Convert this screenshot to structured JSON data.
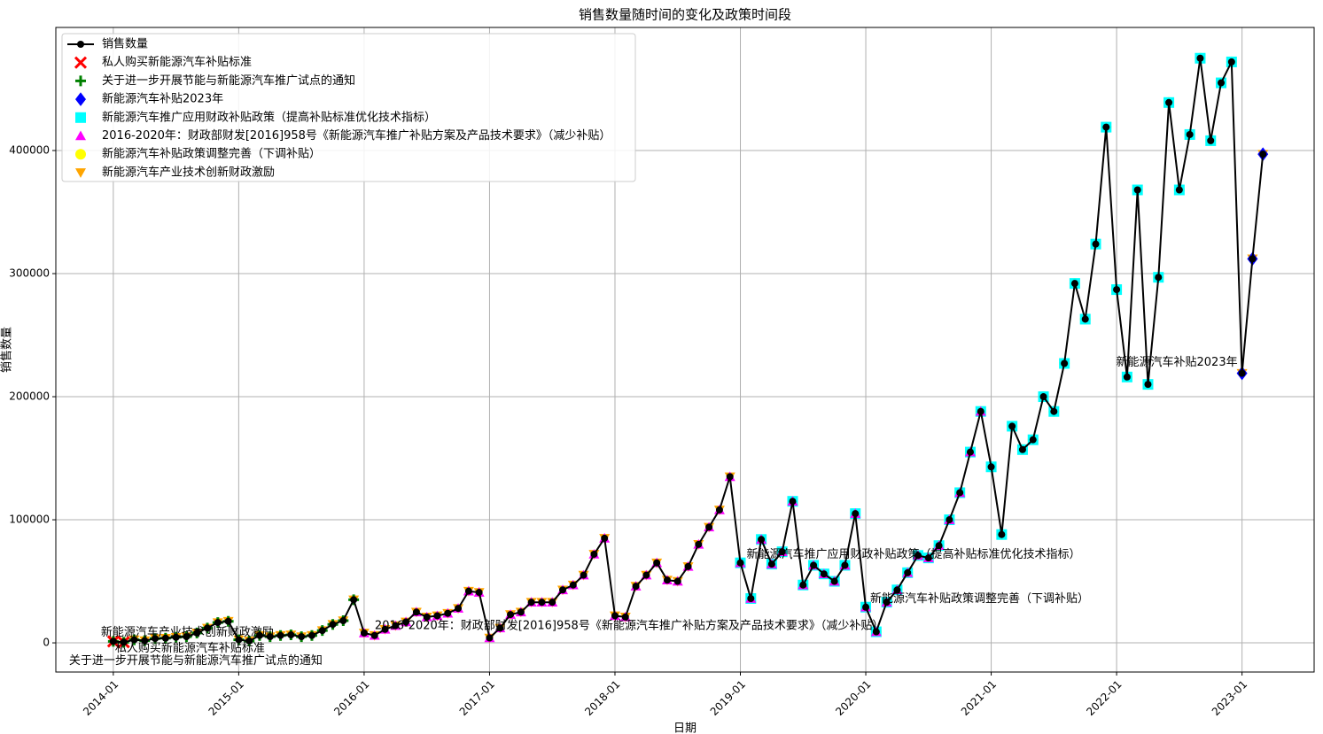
{
  "chart_data": {
    "type": "line",
    "title": "销售数量随时间的变化及政策时间段",
    "x_label": "日期",
    "y_label": "销售数量",
    "x": [
      "2014-01",
      "2014-02",
      "2014-03",
      "2014-04",
      "2014-05",
      "2014-06",
      "2014-07",
      "2014-08",
      "2014-09",
      "2014-10",
      "2014-11",
      "2014-12",
      "2015-01",
      "2015-02",
      "2015-03",
      "2015-04",
      "2015-05",
      "2015-06",
      "2015-07",
      "2015-08",
      "2015-09",
      "2015-10",
      "2015-11",
      "2015-12",
      "2016-01",
      "2016-02",
      "2016-03",
      "2016-04",
      "2016-05",
      "2016-06",
      "2016-07",
      "2016-08",
      "2016-09",
      "2016-10",
      "2016-11",
      "2016-12",
      "2017-01",
      "2017-02",
      "2017-03",
      "2017-04",
      "2017-05",
      "2017-06",
      "2017-07",
      "2017-08",
      "2017-09",
      "2017-10",
      "2017-11",
      "2017-12",
      "2018-01",
      "2018-02",
      "2018-03",
      "2018-04",
      "2018-05",
      "2018-06",
      "2018-07",
      "2018-08",
      "2018-09",
      "2018-10",
      "2018-11",
      "2018-12",
      "2019-01",
      "2019-02",
      "2019-03",
      "2019-04",
      "2019-05",
      "2019-06",
      "2019-07",
      "2019-08",
      "2019-09",
      "2019-10",
      "2019-11",
      "2019-12",
      "2020-01",
      "2020-02",
      "2020-03",
      "2020-04",
      "2020-05",
      "2020-06",
      "2020-07",
      "2020-08",
      "2020-09",
      "2020-10",
      "2020-11",
      "2020-12",
      "2021-01",
      "2021-02",
      "2021-03",
      "2021-04",
      "2021-05",
      "2021-06",
      "2021-07",
      "2021-08",
      "2021-09",
      "2021-10",
      "2021-11",
      "2021-12",
      "2022-01",
      "2022-02",
      "2022-03",
      "2022-04",
      "2022-05",
      "2022-06",
      "2022-07",
      "2022-08",
      "2022-09",
      "2022-10",
      "2022-11",
      "2022-12",
      "2023-01",
      "2023-02",
      "2023-03"
    ],
    "series": [
      {
        "name": "销售数量",
        "color": "#000000",
        "marker": "line",
        "values": [
          1200,
          500,
          2500,
          1800,
          3500,
          3800,
          4500,
          5000,
          8000,
          12000,
          16500,
          17500,
          2500,
          1500,
          6000,
          5000,
          6000,
          6500,
          5000,
          6000,
          10000,
          15000,
          18000,
          35000,
          8000,
          6000,
          11000,
          14000,
          17000,
          25000,
          21000,
          22000,
          24000,
          28000,
          42000,
          41000,
          4000,
          12000,
          23000,
          25000,
          33000,
          33000,
          33000,
          43000,
          47000,
          55000,
          72000,
          85000,
          22000,
          21000,
          46000,
          55000,
          65000,
          51000,
          50000,
          62000,
          80000,
          94000,
          108000,
          135000,
          65000,
          36000,
          84000,
          64000,
          74000,
          115000,
          47000,
          63000,
          56000,
          50000,
          63000,
          105000,
          29000,
          9000,
          33000,
          43000,
          57000,
          71000,
          69000,
          79000,
          100000,
          122000,
          155000,
          188000,
          143000,
          88000,
          176000,
          157000,
          165000,
          200000,
          188000,
          227000,
          292000,
          263000,
          324000,
          419000,
          287000,
          216000,
          368000,
          210000,
          297000,
          439000,
          368000,
          413000,
          475000,
          408000,
          455000,
          472000,
          219000,
          312000,
          397000
        ]
      },
      {
        "name": "私人购买新能源汽车补贴标准",
        "color": "#ff0000",
        "marker": "x",
        "x": [
          "2014-01",
          "2014-02"
        ],
        "values": [
          1200,
          500
        ]
      },
      {
        "name": "关于进一步开展节能与新能源汽车推广试点的通知",
        "color": "#008000",
        "marker": "plus",
        "x": [
          "2014-01",
          "2014-02",
          "2014-03",
          "2014-04",
          "2014-05",
          "2014-06",
          "2014-07",
          "2014-08",
          "2014-09",
          "2014-10",
          "2014-11",
          "2014-12",
          "2015-01",
          "2015-02",
          "2015-03",
          "2015-04",
          "2015-05",
          "2015-06",
          "2015-07",
          "2015-08",
          "2015-09",
          "2015-10",
          "2015-11",
          "2015-12"
        ],
        "values": [
          1200,
          500,
          2500,
          1800,
          3500,
          3800,
          4500,
          5000,
          8000,
          12000,
          16500,
          17500,
          2500,
          1500,
          6000,
          5000,
          6000,
          6500,
          5000,
          6000,
          10000,
          15000,
          18000,
          35000
        ]
      },
      {
        "name": "新能源汽车补贴2023年",
        "color": "#0000ff",
        "marker": "diamond",
        "x": [
          "2023-01",
          "2023-02",
          "2023-03"
        ],
        "values": [
          219000,
          312000,
          397000
        ]
      },
      {
        "name": "新能源汽车推广应用财政补贴政策（提高补贴标准优化技术指标）",
        "color": "#00ffff",
        "marker": "square",
        "x": [
          "2019-01",
          "2019-02",
          "2019-03",
          "2019-04",
          "2019-05",
          "2019-06",
          "2019-07",
          "2019-08",
          "2019-09",
          "2019-10",
          "2019-11",
          "2019-12",
          "2020-01",
          "2020-02",
          "2020-03",
          "2020-04",
          "2020-05",
          "2020-06",
          "2020-07",
          "2020-08",
          "2020-09",
          "2020-10",
          "2020-11",
          "2020-12",
          "2021-01",
          "2021-02",
          "2021-03",
          "2021-04",
          "2021-05",
          "2021-06",
          "2021-07",
          "2021-08",
          "2021-09",
          "2021-10",
          "2021-11",
          "2021-12",
          "2022-01",
          "2022-02",
          "2022-03",
          "2022-04",
          "2022-05",
          "2022-06",
          "2022-07",
          "2022-08",
          "2022-09",
          "2022-10",
          "2022-11",
          "2022-12"
        ],
        "values": [
          65000,
          36000,
          84000,
          64000,
          74000,
          115000,
          47000,
          63000,
          56000,
          50000,
          63000,
          105000,
          29000,
          9000,
          33000,
          43000,
          57000,
          71000,
          69000,
          79000,
          100000,
          122000,
          155000,
          188000,
          143000,
          88000,
          176000,
          157000,
          165000,
          200000,
          188000,
          227000,
          292000,
          263000,
          324000,
          419000,
          287000,
          216000,
          368000,
          210000,
          297000,
          439000,
          368000,
          413000,
          475000,
          408000,
          455000,
          472000
        ]
      },
      {
        "name": "2016-2020年：财政部财发[2016]958号《新能源汽车推广补贴方案及产品技术要求》（减少补贴）",
        "color": "#ff00ff",
        "marker": "triangle-up",
        "x": [
          "2016-01",
          "2016-02",
          "2016-03",
          "2016-04",
          "2016-05",
          "2016-06",
          "2016-07",
          "2016-08",
          "2016-09",
          "2016-10",
          "2016-11",
          "2016-12",
          "2017-01",
          "2017-02",
          "2017-03",
          "2017-04",
          "2017-05",
          "2017-06",
          "2017-07",
          "2017-08",
          "2017-09",
          "2017-10",
          "2017-11",
          "2017-12",
          "2018-01",
          "2018-02",
          "2018-03",
          "2018-04",
          "2018-05",
          "2018-06",
          "2018-07",
          "2018-08",
          "2018-09",
          "2018-10",
          "2018-11",
          "2018-12",
          "2019-01",
          "2019-02",
          "2019-03",
          "2019-04",
          "2019-05",
          "2019-06",
          "2019-07",
          "2019-08",
          "2019-09",
          "2019-10",
          "2019-11",
          "2019-12",
          "2020-01",
          "2020-02",
          "2020-03",
          "2020-04",
          "2020-05",
          "2020-06",
          "2020-07",
          "2020-08",
          "2020-09",
          "2020-10",
          "2020-11",
          "2020-12"
        ],
        "values": [
          8000,
          6000,
          11000,
          14000,
          17000,
          25000,
          21000,
          22000,
          24000,
          28000,
          42000,
          41000,
          4000,
          12000,
          23000,
          25000,
          33000,
          33000,
          33000,
          43000,
          47000,
          55000,
          72000,
          85000,
          22000,
          21000,
          46000,
          55000,
          65000,
          51000,
          50000,
          62000,
          80000,
          94000,
          108000,
          135000,
          65000,
          36000,
          84000,
          64000,
          74000,
          115000,
          47000,
          63000,
          56000,
          50000,
          63000,
          105000,
          29000,
          9000,
          33000,
          43000,
          57000,
          71000,
          69000,
          79000,
          100000,
          122000,
          155000,
          188000
        ]
      },
      {
        "name": "新能源汽车补贴政策调整完善（下调补贴）",
        "color": "#ffff00",
        "marker": "circle",
        "x": [
          "2020-01",
          "2020-02",
          "2020-03",
          "2020-04",
          "2020-05",
          "2020-06",
          "2020-07",
          "2020-08",
          "2020-09",
          "2020-10",
          "2020-11",
          "2020-12",
          "2021-01",
          "2021-02",
          "2021-03",
          "2021-04",
          "2021-05",
          "2021-06",
          "2021-07",
          "2021-08",
          "2021-09",
          "2021-10",
          "2021-11",
          "2021-12",
          "2022-01",
          "2022-02",
          "2022-03",
          "2022-04",
          "2022-05",
          "2022-06",
          "2022-07",
          "2022-08",
          "2022-09",
          "2022-10",
          "2022-11",
          "2022-12"
        ],
        "values": [
          29000,
          9000,
          33000,
          43000,
          57000,
          71000,
          69000,
          79000,
          100000,
          122000,
          155000,
          188000,
          143000,
          88000,
          176000,
          157000,
          165000,
          200000,
          188000,
          227000,
          292000,
          263000,
          324000,
          419000,
          287000,
          216000,
          368000,
          210000,
          297000,
          439000,
          368000,
          413000,
          475000,
          408000,
          455000,
          472000
        ]
      },
      {
        "name": "新能源汽车产业技术创新财政激励",
        "color": "#ffa500",
        "marker": "triangle-down",
        "x": [
          "2014-01",
          "2014-02",
          "2014-03",
          "2014-04",
          "2014-05",
          "2014-06",
          "2014-07",
          "2014-08",
          "2014-09",
          "2014-10",
          "2014-11",
          "2014-12",
          "2015-01",
          "2015-02",
          "2015-03",
          "2015-04",
          "2015-05",
          "2015-06",
          "2015-07",
          "2015-08",
          "2015-09",
          "2015-10",
          "2015-11",
          "2015-12",
          "2016-01",
          "2016-02",
          "2016-03",
          "2016-04",
          "2016-05",
          "2016-06",
          "2016-07",
          "2016-08",
          "2016-09",
          "2016-10",
          "2016-11",
          "2016-12",
          "2017-01",
          "2017-02",
          "2017-03",
          "2017-04",
          "2017-05",
          "2017-06",
          "2017-07",
          "2017-08",
          "2017-09",
          "2017-10",
          "2017-11",
          "2017-12",
          "2018-01",
          "2018-02",
          "2018-03",
          "2018-04",
          "2018-05",
          "2018-06",
          "2018-07",
          "2018-08",
          "2018-09",
          "2018-10",
          "2018-11",
          "2018-12",
          "2019-01",
          "2019-02",
          "2019-03",
          "2019-04",
          "2019-05",
          "2019-06",
          "2019-07",
          "2019-08",
          "2019-09",
          "2019-10",
          "2019-11",
          "2019-12",
          "2020-01",
          "2020-02",
          "2020-03",
          "2020-04",
          "2020-05",
          "2020-06",
          "2020-07",
          "2020-08",
          "2020-09",
          "2020-10",
          "2020-11",
          "2020-12",
          "2021-01",
          "2021-02",
          "2021-03",
          "2021-04",
          "2021-05",
          "2021-06",
          "2021-07",
          "2021-08",
          "2021-09",
          "2021-10",
          "2021-11",
          "2021-12",
          "2022-01",
          "2022-02",
          "2022-03",
          "2022-04",
          "2022-05",
          "2022-06",
          "2022-07",
          "2022-08",
          "2022-09",
          "2022-10",
          "2022-11",
          "2022-12",
          "2023-01",
          "2023-02",
          "2023-03"
        ],
        "values": [
          1200,
          500,
          2500,
          1800,
          3500,
          3800,
          4500,
          5000,
          8000,
          12000,
          16500,
          17500,
          2500,
          1500,
          6000,
          5000,
          6000,
          6500,
          5000,
          6000,
          10000,
          15000,
          18000,
          35000,
          8000,
          6000,
          11000,
          14000,
          17000,
          25000,
          21000,
          22000,
          24000,
          28000,
          42000,
          41000,
          4000,
          12000,
          23000,
          25000,
          33000,
          33000,
          33000,
          43000,
          47000,
          55000,
          72000,
          85000,
          22000,
          21000,
          46000,
          55000,
          65000,
          51000,
          50000,
          62000,
          80000,
          94000,
          108000,
          135000,
          65000,
          36000,
          84000,
          64000,
          74000,
          115000,
          47000,
          63000,
          56000,
          50000,
          63000,
          105000,
          29000,
          9000,
          33000,
          43000,
          57000,
          71000,
          69000,
          79000,
          100000,
          122000,
          155000,
          188000,
          143000,
          88000,
          176000,
          157000,
          165000,
          200000,
          188000,
          227000,
          292000,
          263000,
          324000,
          419000,
          287000,
          216000,
          368000,
          210000,
          297000,
          439000,
          368000,
          413000,
          475000,
          408000,
          455000,
          472000,
          219000,
          312000,
          397000
        ]
      }
    ],
    "xticks": [
      "2014-01",
      "2015-01",
      "2016-01",
      "2017-01",
      "2018-01",
      "2019-01",
      "2020-01",
      "2021-01",
      "2022-01",
      "2023-01"
    ],
    "ylim": [
      -23700,
      500000
    ],
    "yticks": [
      0,
      100000,
      200000,
      300000,
      400000
    ],
    "grid": true,
    "legend": "upper left"
  }
}
